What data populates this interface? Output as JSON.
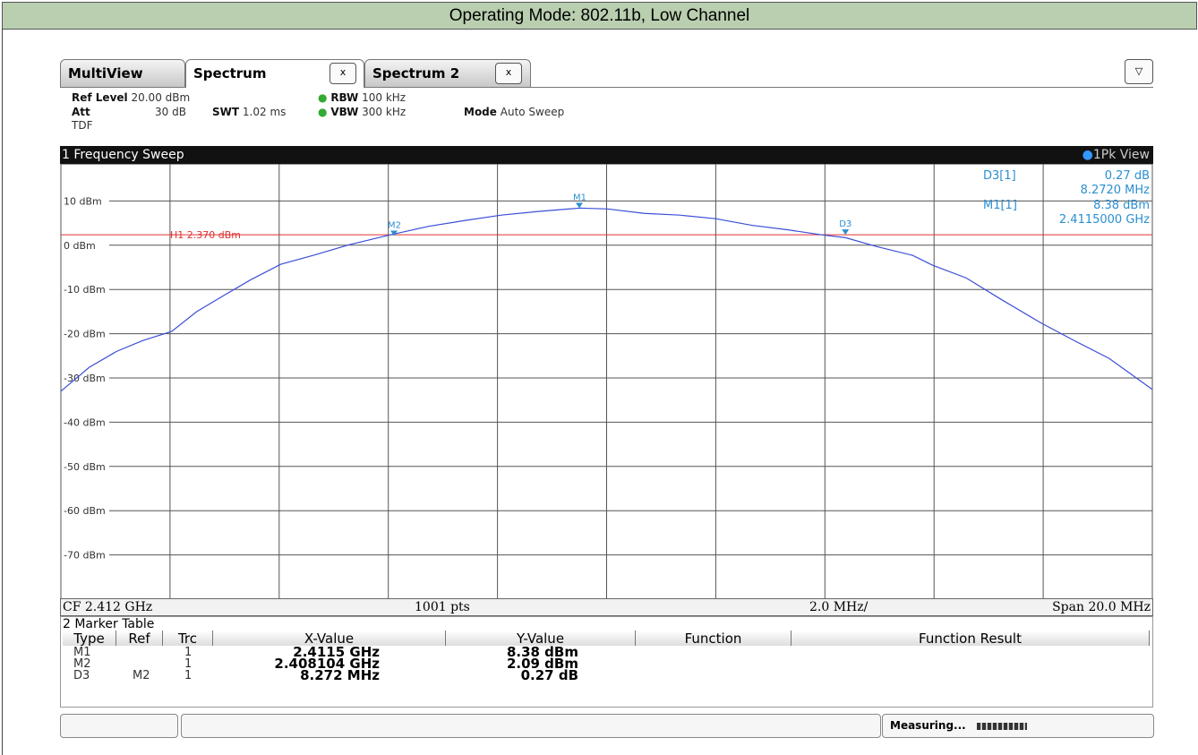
{
  "page_title": "Operating Mode: 802.11b, Low Channel",
  "tabs": [
    {
      "label": "MultiView"
    },
    {
      "label": "Spectrum",
      "close": "x"
    },
    {
      "label": "Spectrum 2",
      "close": "x"
    }
  ],
  "menu_button": "▽",
  "settings": {
    "ref_level_label": "Ref Level",
    "ref_level": "20.00 dBm",
    "att_label": "Att",
    "att": "30 dB",
    "tdf": "TDF",
    "swt_label": "SWT",
    "swt": "1.02 ms",
    "rbw_label": "RBW",
    "rbw": "100 kHz",
    "vbw_label": "VBW",
    "vbw": "300 kHz",
    "mode_label": "Mode",
    "mode": "Auto Sweep"
  },
  "sweep_title": "1 Frequency Sweep",
  "trace_view": "1Pk View",
  "marker_info": [
    {
      "name": "D3[1]",
      "lines": [
        "0.27 dB",
        "8.2720 MHz"
      ]
    },
    {
      "name": "M1[1]",
      "lines": [
        "8.38 dBm",
        "2.4115000 GHz"
      ]
    }
  ],
  "footer": {
    "cf": "CF 2.412 GHz",
    "points": "1001 pts",
    "div": "2.0 MHz/",
    "span": "Span 20.0 MHz"
  },
  "marker_table": {
    "title": "2 Marker Table",
    "headers": [
      "Type",
      "Ref",
      "Trc",
      "X-Value",
      "Y-Value",
      "Function",
      "Function Result"
    ],
    "rows": [
      {
        "type": "M1",
        "trc": "1",
        "x_value": "2.4115 GHz",
        "y_value": "8.38 dBm"
      },
      {
        "type": "M2",
        "trc": "1",
        "x_value": "2.408104 GHz",
        "y_value": "2.09 dBm"
      },
      {
        "type": "D3",
        "ref": "M2",
        "trc": "1",
        "x_value": "8.272 MHz",
        "y_value": "0.27 dB"
      }
    ]
  },
  "status": "Measuring...",
  "chart_data": {
    "type": "line",
    "x": [
      2.402,
      2.40252,
      2.40302,
      2.40351,
      2.40403,
      2.40449,
      2.40498,
      2.40548,
      2.40603,
      2.40662,
      2.40728,
      2.40802,
      2.40875,
      2.40941,
      2.41007,
      2.41072,
      2.41151,
      2.41202,
      2.41269,
      2.41334,
      2.414,
      2.41466,
      2.41531,
      2.41597,
      2.41638,
      2.41695,
      2.41761,
      2.41797,
      2.41859,
      2.41925,
      2.41995,
      2.42056,
      2.42121,
      2.422
    ],
    "series": [
      {
        "color": "#3a4fd8",
        "values": [
          -33,
          -27.6,
          -24,
          -21.5,
          -19.5,
          -15,
          -11.4,
          -7.8,
          -4.3,
          -2.3,
          0.1,
          2.3,
          4.3,
          5.6,
          6.8,
          7.6,
          8.4,
          8.2,
          7.2,
          6.8,
          6,
          4.5,
          3.5,
          2.3,
          1.7,
          -0.3,
          -2.3,
          -4.5,
          -7.4,
          -12.4,
          -17.5,
          -21.5,
          -25.6,
          -32.6
        ]
      }
    ],
    "xlim": [
      2.402,
      2.422
    ],
    "xticks": [
      2.402,
      2.404,
      2.406,
      2.408,
      2.41,
      2.412,
      2.414,
      2.416,
      2.418,
      2.42,
      2.422
    ],
    "ylim": [
      -80,
      20
    ],
    "yticks": [
      {
        "value": 10,
        "label": "10 dBm"
      },
      {
        "value": 0,
        "label": "0 dBm"
      },
      {
        "value": -10,
        "label": "-10 dBm"
      },
      {
        "value": -20,
        "label": "-20 dBm"
      },
      {
        "value": -30,
        "label": "-30 dBm"
      },
      {
        "value": -40,
        "label": "-40 dBm"
      },
      {
        "value": -50,
        "label": "-50 dBm"
      },
      {
        "value": -60,
        "label": "-60 dBm"
      },
      {
        "value": -70,
        "label": "-70 dBm"
      }
    ],
    "grid": true,
    "ref_line": {
      "value": 2.37,
      "label": "H1 2.370 dBm",
      "color": "#e03030"
    },
    "markers": [
      {
        "name": "M1",
        "x": 2.4115,
        "y": 8.38
      },
      {
        "name": "M2",
        "x": 2.408104,
        "y": 2.09
      },
      {
        "name": "D3",
        "x": 2.416376,
        "y": 2.36
      }
    ],
    "marker_color": "#2a8fd0"
  }
}
